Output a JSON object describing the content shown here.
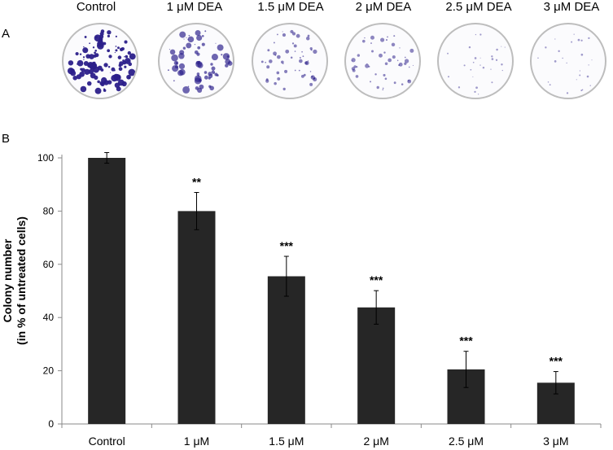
{
  "panel_a": {
    "label": "A",
    "dishes": [
      {
        "label": "Control",
        "density": 1.0
      },
      {
        "label": "1 μM DEA",
        "density": 0.55
      },
      {
        "label": "1.5 μM DEA",
        "density": 0.35
      },
      {
        "label": "2 μM DEA",
        "density": 0.3
      },
      {
        "label": "2.5 μM DEA",
        "density": 0.08
      },
      {
        "label": "3 μM DEA",
        "density": 0.06
      }
    ],
    "colony_color": "#2b1f8a"
  },
  "panel_b": {
    "label": "B"
  },
  "chart_data": {
    "type": "bar",
    "categories": [
      "Control",
      "1 μM",
      "1.5 μM",
      "2 μM",
      "2.5 μM",
      "3 μM"
    ],
    "values": [
      100,
      80,
      55.5,
      43.8,
      20.5,
      15.5
    ],
    "errors": [
      2,
      7,
      7.5,
      6.3,
      6.8,
      4.2
    ],
    "significance": [
      "",
      "**",
      "***",
      "***",
      "***",
      "***"
    ],
    "ylabel_line1": "Colony number",
    "ylabel_line2": "(in % of untreated cells)",
    "ylim": [
      0,
      100
    ],
    "yticks": [
      0,
      20,
      40,
      60,
      80,
      100
    ],
    "bar_color": "#262626",
    "grid": false
  }
}
